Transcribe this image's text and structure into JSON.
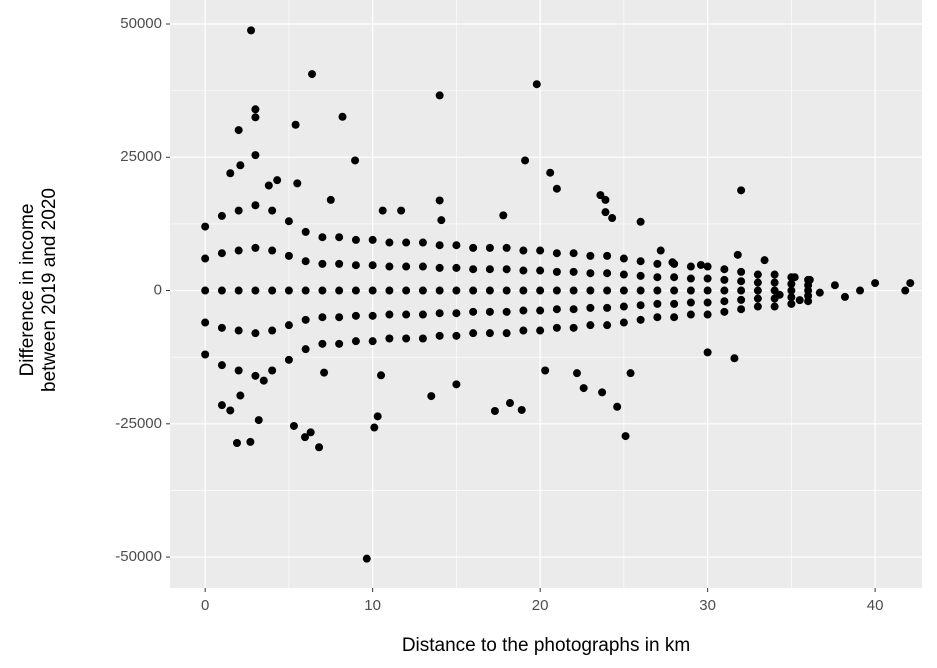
{
  "chart_data": {
    "type": "scatter",
    "xlabel": "Distance to the photographs in km",
    "ylabel": [
      "Difference in income",
      "between 2019 and 2020"
    ],
    "xlim": [
      -2.1,
      42.8
    ],
    "ylim": [
      -55800,
      54500
    ],
    "xticks": [
      0,
      10,
      20,
      30,
      40
    ],
    "yticks": [
      -50000,
      -25000,
      0,
      25000,
      50000
    ],
    "x_minor_ticks": [
      5,
      15,
      25,
      35
    ],
    "y_minor_ticks": [
      -37500,
      -12500,
      12500,
      37500
    ],
    "grid": true,
    "background": "#ebebeb",
    "series": [
      {
        "color": "#000000",
        "x": [
          0,
          0,
          0,
          0,
          0,
          1,
          1,
          1,
          1,
          1,
          2,
          2,
          2,
          2,
          2,
          3,
          3,
          3,
          3,
          3,
          4,
          4,
          4,
          4,
          4,
          5,
          5,
          5,
          5,
          5,
          6,
          6,
          6,
          6,
          6,
          7,
          7,
          7,
          7,
          7,
          8,
          8,
          8,
          8,
          8,
          9,
          9,
          9,
          9,
          9,
          10,
          10,
          10,
          10,
          10,
          11,
          11,
          11,
          11,
          11,
          12,
          12,
          12,
          12,
          12,
          13,
          13,
          13,
          13,
          13,
          14,
          14,
          14,
          14,
          14,
          15,
          15,
          15,
          15,
          15,
          16,
          16,
          16,
          16,
          16,
          17,
          17,
          17,
          17,
          17,
          18,
          18,
          18,
          18,
          18,
          19,
          19,
          19,
          19,
          19,
          20,
          20,
          20,
          20,
          20,
          21,
          21,
          21,
          21,
          21,
          22,
          22,
          22,
          22,
          22,
          23,
          23,
          23,
          23,
          23,
          24,
          24,
          24,
          24,
          24,
          25,
          25,
          25,
          25,
          25,
          26,
          26,
          26,
          26,
          26,
          27,
          27,
          27,
          27,
          27,
          28,
          28,
          28,
          28,
          28,
          29,
          29,
          29,
          29,
          29,
          30,
          30,
          30,
          30,
          30,
          31,
          31,
          31,
          31,
          31,
          32,
          32,
          32,
          32,
          32,
          33,
          33,
          33,
          33,
          33,
          34,
          34,
          34,
          34,
          34,
          35,
          35,
          35,
          35,
          35,
          36,
          36,
          36,
          36,
          36,
          2.74,
          6.38,
          19.8,
          14.0,
          8.2,
          3.0,
          3.0,
          5.4,
          2.0,
          8.95,
          19.1,
          20.6,
          21.0,
          3.0,
          2.1,
          23.6,
          23.9,
          23.9,
          24.3,
          26.0,
          32.0,
          9.65,
          25.1,
          6.8,
          5.96,
          6.3,
          1.9,
          2.7,
          5.3,
          10.1,
          10.3,
          17.3,
          18.9,
          18.2,
          24.6,
          13.5,
          15.0,
          22.6,
          22.2,
          25.4,
          23.7,
          30.0,
          31.6,
          10.5,
          7.1,
          20.3,
          3.2,
          1.5,
          1.0,
          2.1,
          3.5,
          35.5,
          40.0,
          41.8,
          42.1,
          39.1,
          38.2,
          37.6,
          36.7,
          36.1,
          35.2,
          34.3,
          4.3,
          5.5,
          1.5,
          3.8,
          7.5,
          10.6,
          11.7,
          14.1,
          17.8,
          14.0,
          27.2,
          27.9,
          29.6,
          31.8,
          33.4
        ],
        "values": [
          12000,
          6000,
          0,
          -6000,
          -12000,
          14000,
          7000,
          0,
          -7000,
          -14000,
          15000,
          7500,
          0,
          -7500,
          -15000,
          16000,
          8000,
          0,
          -8000,
          -16000,
          15000,
          7500,
          0,
          -7500,
          -15000,
          13000,
          6500,
          0,
          -6500,
          -13000,
          11000,
          5500,
          0,
          -5500,
          -11000,
          10000,
          5000,
          0,
          -5000,
          -10000,
          10000,
          5000,
          0,
          -5000,
          -10000,
          9500,
          4750,
          0,
          -4750,
          -9500,
          9500,
          4750,
          0,
          -4750,
          -9500,
          9000,
          4500,
          0,
          -4500,
          -9000,
          9000,
          4500,
          0,
          -4500,
          -9000,
          9000,
          4500,
          0,
          -4500,
          -9000,
          8500,
          4250,
          0,
          -4250,
          -8500,
          8500,
          4250,
          0,
          -4250,
          -8500,
          8000,
          4000,
          0,
          -4000,
          -8000,
          8000,
          4000,
          0,
          -4000,
          -8000,
          8000,
          4000,
          0,
          -4000,
          -8000,
          7500,
          3750,
          0,
          -3750,
          -7500,
          7500,
          3750,
          0,
          -3750,
          -7500,
          7000,
          3500,
          0,
          -3500,
          -7000,
          7000,
          3500,
          0,
          -3500,
          -7000,
          6500,
          3250,
          0,
          -3250,
          -6500,
          6500,
          3250,
          0,
          -3250,
          -6500,
          6000,
          3000,
          0,
          -3000,
          -6000,
          5500,
          2750,
          0,
          -2750,
          -5500,
          5000,
          2500,
          0,
          -2500,
          -5000,
          5000,
          2500,
          0,
          -2500,
          -5000,
          4500,
          2250,
          0,
          -2250,
          -4500,
          4500,
          2250,
          0,
          -2250,
          -4500,
          4000,
          2000,
          0,
          -2000,
          -4000,
          3500,
          1750,
          0,
          -1750,
          -3500,
          3000,
          1500,
          0,
          -1500,
          -3000,
          3000,
          1500,
          0,
          -1500,
          -3000,
          2500,
          1250,
          0,
          -1250,
          -2500,
          2000,
          1000,
          0,
          -1000,
          -2000,
          48800,
          40600,
          38700,
          36600,
          32600,
          34000,
          32500,
          31100,
          30100,
          24400,
          24400,
          22100,
          19100,
          25400,
          23500,
          17900,
          17000,
          14700,
          13600,
          12900,
          18800,
          -50300,
          -27300,
          -29400,
          -27500,
          -26600,
          -28600,
          -28400,
          -25400,
          -25700,
          -23600,
          -22600,
          -22400,
          -21100,
          -21800,
          -19800,
          -17600,
          -18300,
          -15500,
          -15500,
          -19100,
          -11600,
          -12700,
          -15900,
          -15400,
          -15000,
          -24300,
          -22500,
          -21500,
          -19700,
          -16900,
          -1800,
          1400,
          0,
          1400,
          0,
          -1200,
          1000,
          -400,
          2000,
          2500,
          -800,
          20700,
          20100,
          22000,
          19700,
          17000,
          15000,
          15000,
          13200,
          14100,
          16900,
          7500,
          5300,
          4800,
          6700,
          5700
        ]
      }
    ]
  }
}
